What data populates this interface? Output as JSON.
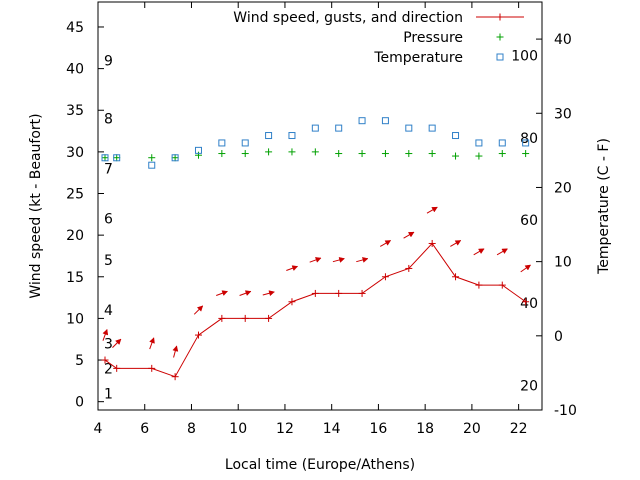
{
  "chart_data": {
    "type": "line",
    "xlabel": "Local time (Europe/Athens)",
    "ylabel_left": "Wind speed (kt - Beaufort)",
    "ylabel_right": "Temperature (C - F)",
    "x_range": [
      4,
      23
    ],
    "y_left_range": [
      -1,
      48
    ],
    "y_right_range": [
      -10,
      45
    ],
    "x_ticks": [
      4,
      6,
      8,
      10,
      12,
      14,
      16,
      18,
      20,
      22
    ],
    "y_left_ticks": [
      0,
      5,
      10,
      15,
      20,
      25,
      30,
      35,
      40,
      45
    ],
    "y_right_ticks": [
      -10,
      0,
      10,
      20,
      30,
      40
    ],
    "beaufort_labels": [
      {
        "label": "1",
        "kt": 1
      },
      {
        "label": "2",
        "kt": 4
      },
      {
        "label": "3",
        "kt": 7
      },
      {
        "label": "4",
        "kt": 11
      },
      {
        "label": "5",
        "kt": 17
      },
      {
        "label": "6",
        "kt": 22
      },
      {
        "label": "7",
        "kt": 28
      },
      {
        "label": "8",
        "kt": 34
      },
      {
        "label": "9",
        "kt": 41
      }
    ],
    "fahrenheit_labels": [
      {
        "label": "20",
        "temp_c": -6.7
      },
      {
        "label": "40",
        "temp_c": 4.4
      },
      {
        "label": "60",
        "temp_c": 15.6
      },
      {
        "label": "80",
        "temp_c": 26.7
      },
      {
        "label": "100",
        "temp_c": 37.8
      }
    ],
    "legend_position": "top-right",
    "grid": false,
    "series": [
      {
        "name": "Wind speed, gusts, and direction",
        "color": "#cc0000",
        "x": [
          4.3,
          4.8,
          6.3,
          7.3,
          8.3,
          9.3,
          10.3,
          11.3,
          12.3,
          13.3,
          14.3,
          15.3,
          16.3,
          17.3,
          18.3,
          19.3,
          20.3,
          21.3,
          22.3
        ],
        "values": [
          5,
          4,
          4,
          3,
          8,
          10,
          10,
          10,
          12,
          13,
          13,
          13,
          15,
          16,
          19,
          15,
          14,
          14,
          12
        ],
        "gust_arrows_kt": [
          8,
          7,
          7,
          6,
          11,
          13,
          13,
          13,
          16,
          17,
          17,
          17,
          19,
          20,
          23,
          19,
          18,
          18,
          16
        ],
        "arrow_bearing_deg": [
          20,
          45,
          20,
          15,
          45,
          70,
          70,
          75,
          70,
          70,
          75,
          75,
          60,
          60,
          60,
          60,
          60,
          60,
          55
        ]
      },
      {
        "name": "Pressure",
        "color": "#00a000",
        "x": [
          4.3,
          4.8,
          6.3,
          7.3,
          8.3,
          9.3,
          10.3,
          11.3,
          12.3,
          13.3,
          14.3,
          15.3,
          16.3,
          17.3,
          18.3,
          19.3,
          20.3,
          21.3,
          22.3
        ],
        "values": [
          29.3,
          29.3,
          29.3,
          29.3,
          29.6,
          29.8,
          29.8,
          30.0,
          30.0,
          30.0,
          29.8,
          29.8,
          29.8,
          29.8,
          29.8,
          29.5,
          29.5,
          29.8,
          29.8
        ]
      },
      {
        "name": "Temperature",
        "color": "#3080c8",
        "x": [
          4.3,
          4.8,
          6.3,
          7.3,
          8.3,
          9.3,
          10.3,
          11.3,
          12.3,
          13.3,
          14.3,
          15.3,
          16.3,
          17.3,
          18.3,
          19.3,
          20.3,
          21.3,
          22.3
        ],
        "values": [
          24,
          24,
          23,
          24,
          25,
          26,
          26,
          27,
          27,
          28,
          28,
          29,
          29,
          28,
          28,
          27,
          26,
          26,
          26
        ]
      }
    ]
  }
}
